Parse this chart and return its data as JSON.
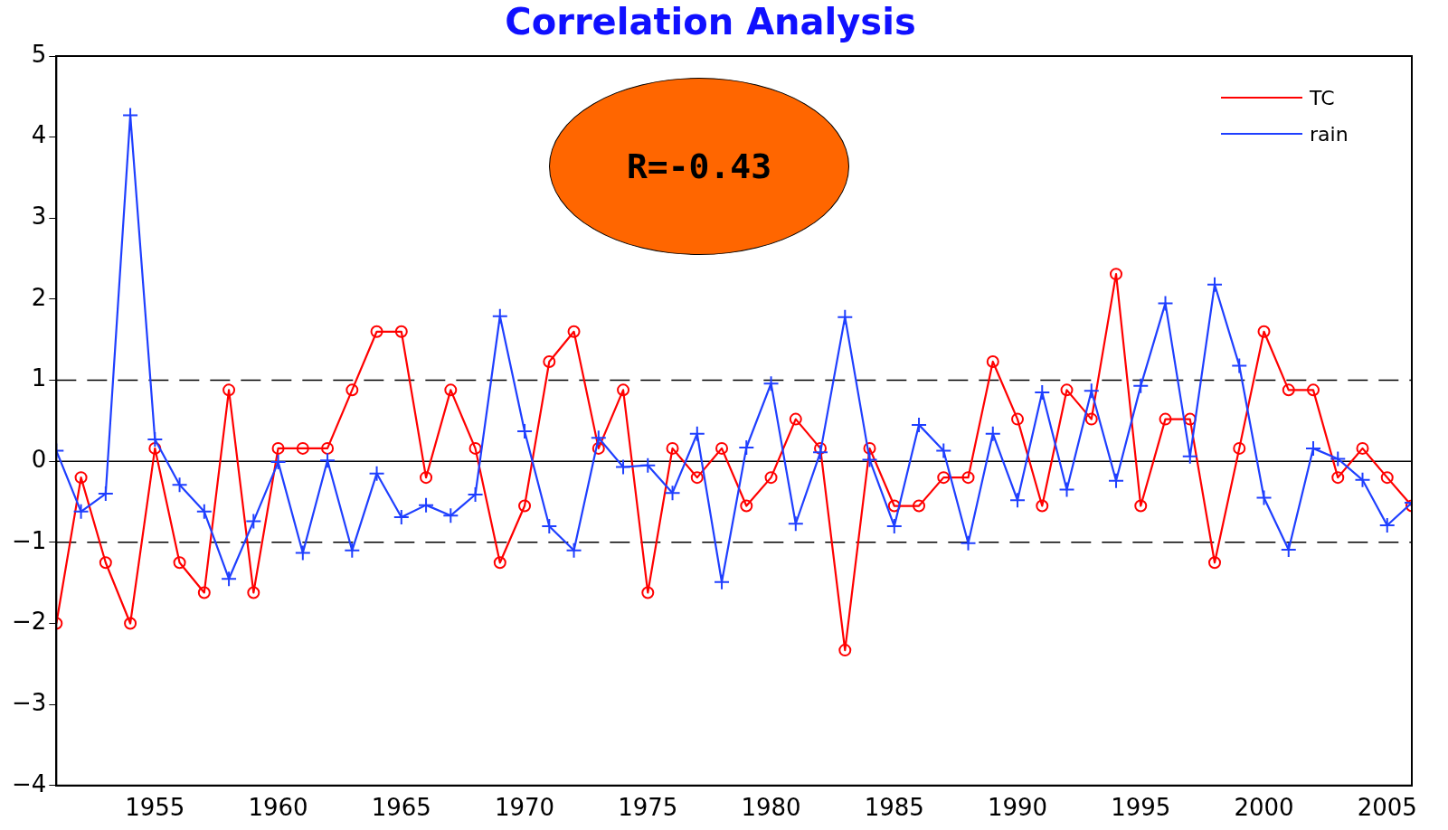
{
  "chart_data": {
    "type": "line",
    "title": "Correlation Analysis",
    "x": [
      1951,
      1952,
      1953,
      1954,
      1955,
      1956,
      1957,
      1958,
      1959,
      1960,
      1961,
      1962,
      1963,
      1964,
      1965,
      1966,
      1967,
      1968,
      1969,
      1970,
      1971,
      1972,
      1973,
      1974,
      1975,
      1976,
      1977,
      1978,
      1979,
      1980,
      1981,
      1982,
      1983,
      1984,
      1985,
      1986,
      1987,
      1988,
      1989,
      1990,
      1991,
      1992,
      1993,
      1994,
      1995,
      1996,
      1997,
      1998,
      1999,
      2000,
      2001,
      2002,
      2003,
      2004,
      2005,
      2006
    ],
    "series": [
      {
        "name": "TC",
        "color": "#ff0000",
        "marker": "circle",
        "values": [
          -2.0,
          -0.2,
          -1.25,
          -2.0,
          0.16,
          -1.25,
          -1.62,
          0.88,
          -1.62,
          0.16,
          0.16,
          0.16,
          0.88,
          1.6,
          1.6,
          -0.2,
          0.88,
          0.16,
          -1.25,
          -0.55,
          1.23,
          1.6,
          0.16,
          0.88,
          -1.62,
          0.16,
          -0.2,
          0.16,
          -0.55,
          -0.2,
          0.52,
          0.16,
          -2.33,
          0.16,
          -0.55,
          -0.55,
          -0.2,
          -0.2,
          1.23,
          0.52,
          -0.55,
          0.88,
          0.52,
          2.31,
          -0.55,
          0.52,
          0.52,
          -1.25,
          0.16,
          1.6,
          0.88,
          0.88,
          -0.2,
          0.16,
          -0.2,
          -0.55
        ]
      },
      {
        "name": "rain",
        "color": "#1f3fff",
        "marker": "cross",
        "values": [
          0.13,
          -0.62,
          -0.4,
          4.27,
          0.27,
          -0.29,
          -0.62,
          -1.45,
          -0.74,
          -0.01,
          -1.13,
          0.01,
          -1.1,
          -0.15,
          -0.69,
          -0.54,
          -0.67,
          -0.41,
          1.79,
          0.37,
          -0.8,
          -1.1,
          0.29,
          -0.07,
          -0.05,
          -0.39,
          0.34,
          -1.49,
          0.17,
          0.96,
          -0.77,
          0.11,
          1.78,
          0.02,
          -0.8,
          0.45,
          0.13,
          -1.01,
          0.34,
          -0.48,
          0.85,
          -0.35,
          0.87,
          -0.24,
          0.93,
          1.95,
          0.06,
          2.18,
          1.18,
          -0.45,
          -1.09,
          0.16,
          0.03,
          -0.23,
          -0.79,
          -0.51
        ]
      }
    ],
    "xlim": [
      1951,
      2006
    ],
    "xticks": [
      1955,
      1960,
      1965,
      1970,
      1975,
      1980,
      1985,
      1990,
      1995,
      2000,
      2005
    ],
    "ylim": [
      -4,
      5
    ],
    "yticks": [
      -4,
      -3,
      -2,
      -1,
      0,
      1,
      2,
      3,
      4,
      5
    ],
    "ref_lines": [
      {
        "axis": "y",
        "value": 1,
        "line_style": "dashed",
        "color": "#000000"
      },
      {
        "axis": "y",
        "value": -1,
        "line_style": "dashed",
        "color": "#000000"
      },
      {
        "axis": "y",
        "value": 0,
        "line_style": "solid",
        "color": "#000000"
      }
    ],
    "annotations": [
      "R=-0.43"
    ],
    "grid": false,
    "legend": "top right",
    "line_style": "solid"
  }
}
